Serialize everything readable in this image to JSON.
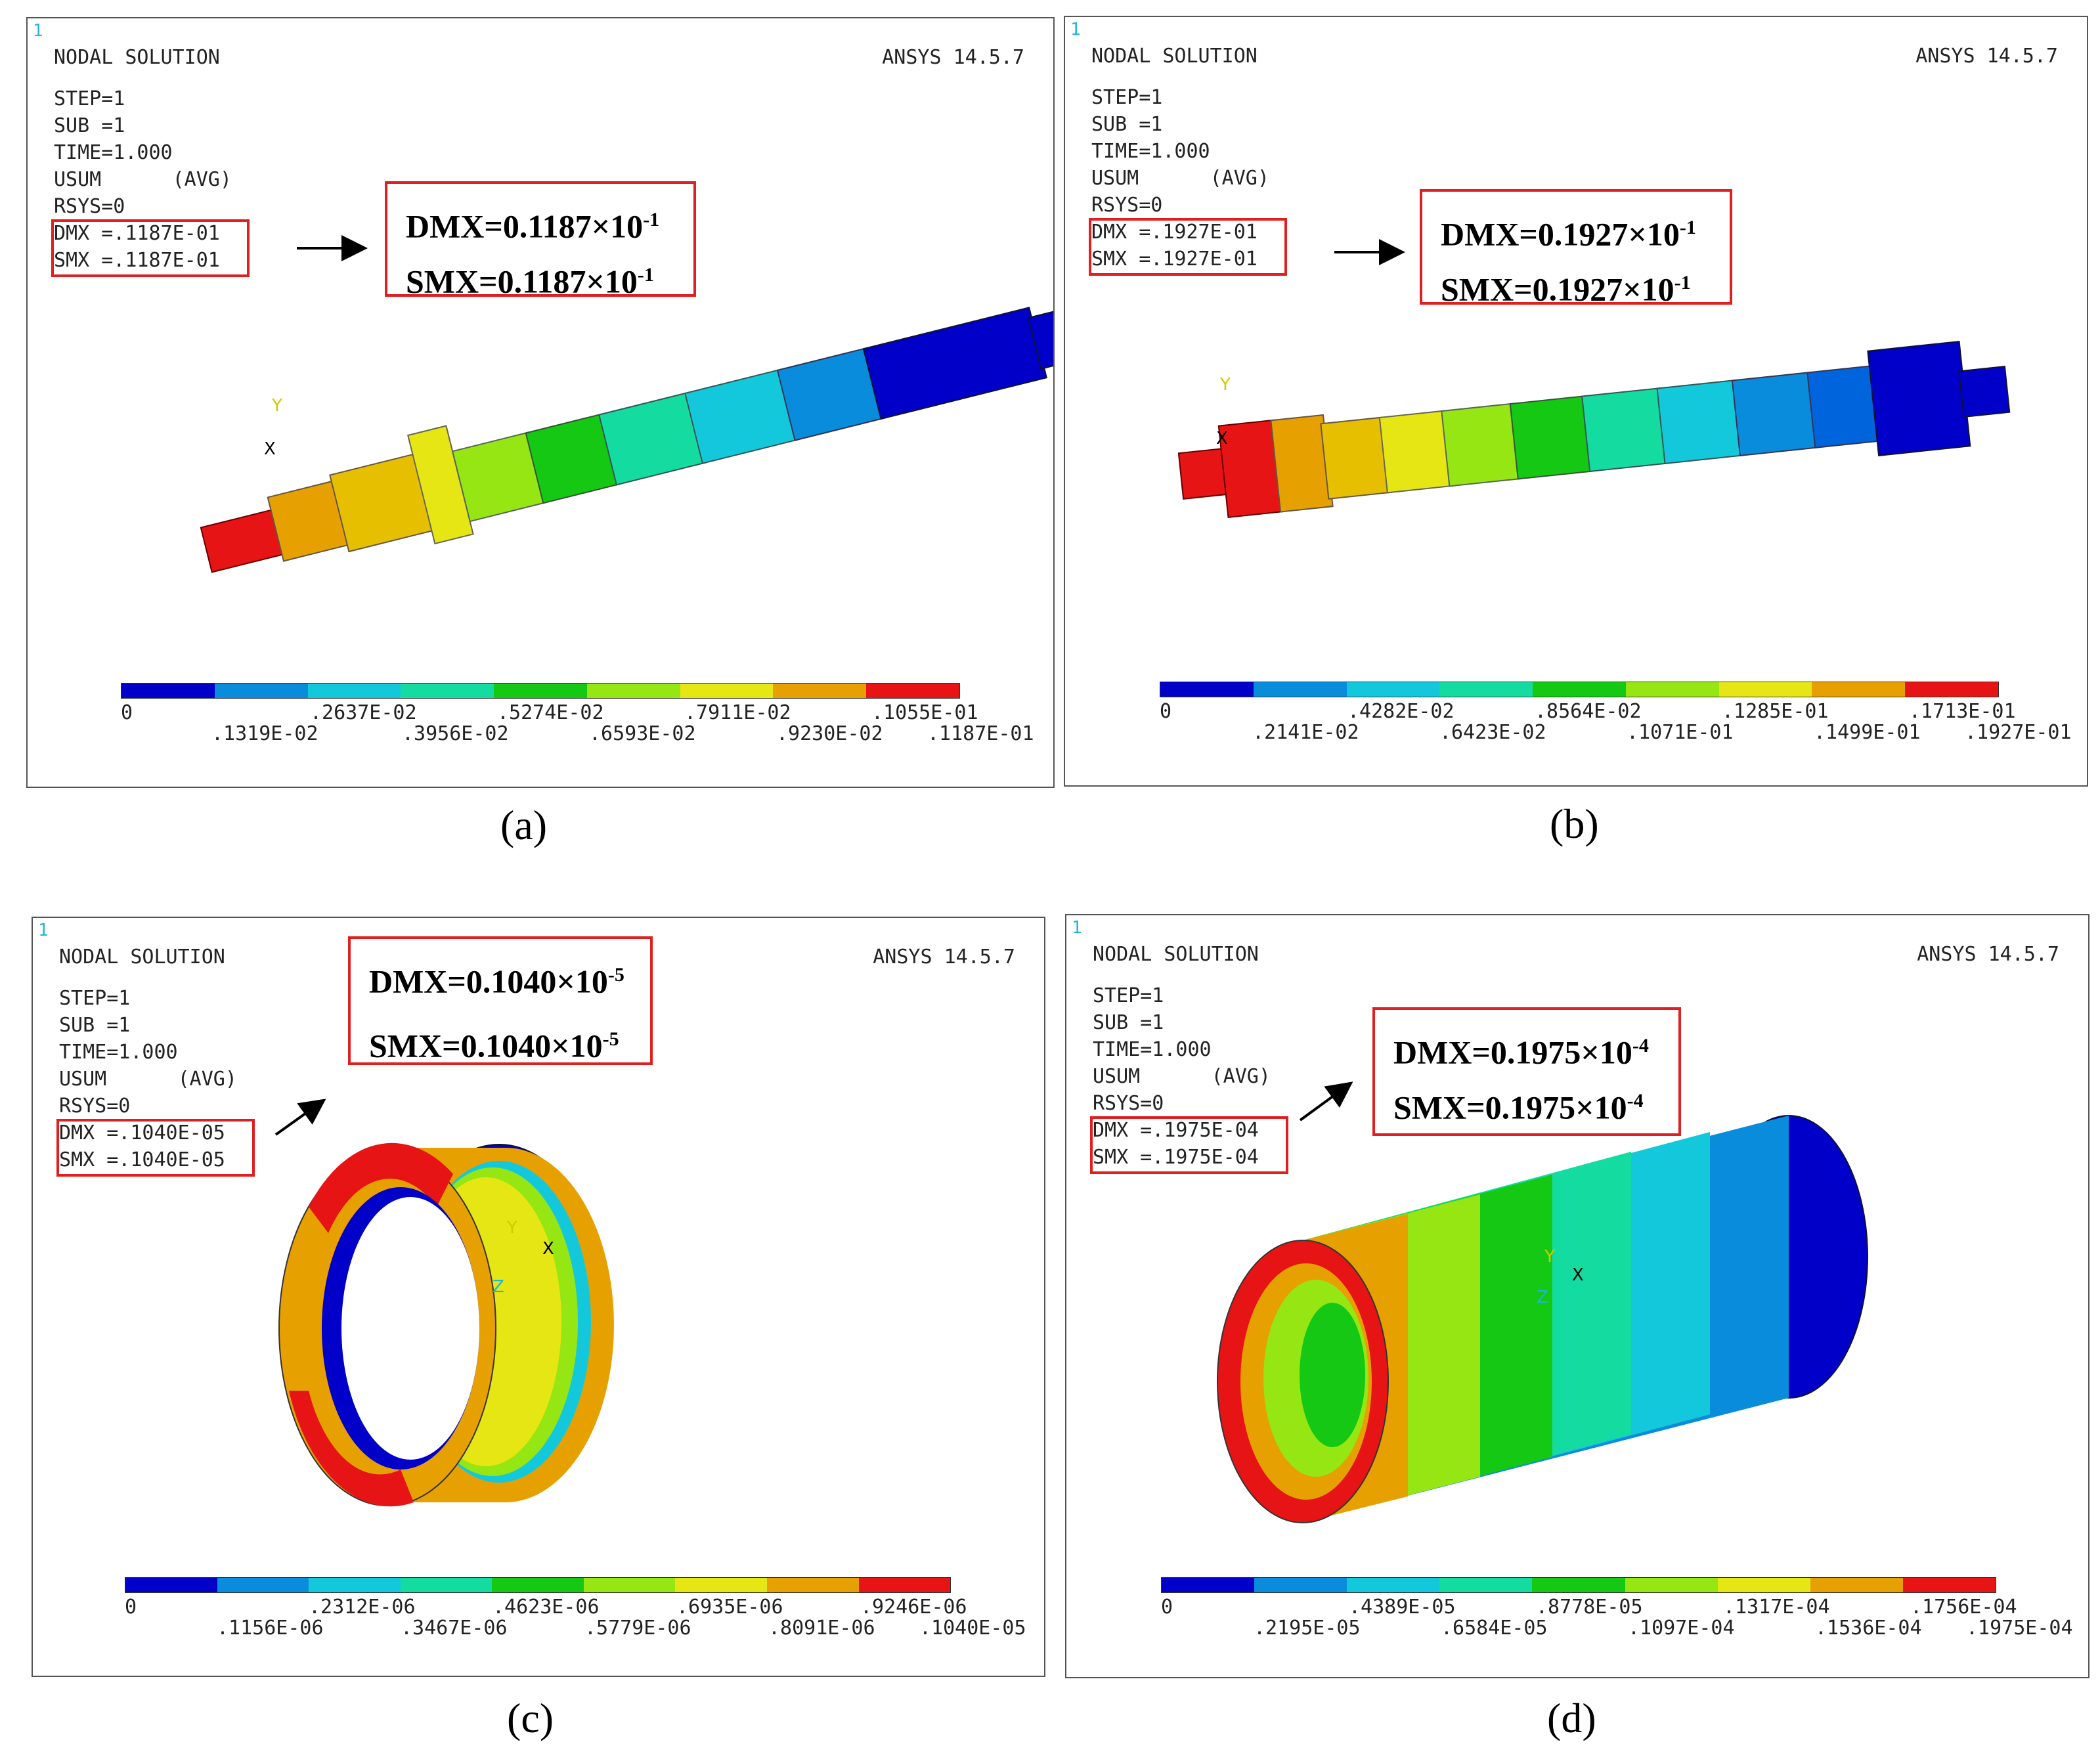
{
  "colors": [
    "#0000c8",
    "#0a8cdc",
    "#14c8dc",
    "#14dca0",
    "#14c814",
    "#96e614",
    "#e6e614",
    "#e6a000",
    "#e61414"
  ],
  "panels": [
    {
      "label": "(a)",
      "number": "1",
      "title": "NODAL SOLUTION",
      "version": "ANSYS 14.5.7",
      "info": [
        "STEP=1",
        "SUB =1",
        "TIME=1.000",
        "USUM      (AVG)",
        "RSYS=0"
      ],
      "dmx": "DMX =.1187E-01",
      "smx": "SMX =.1187E-01",
      "dmx_big": "DMX=0.1187×10",
      "smx_big": "SMX=0.1187×10",
      "exp": "-1",
      "ticks_top": [
        "0",
        ".2637E-02",
        ".5274E-02",
        ".7911E-02",
        ".1055E-01"
      ],
      "ticks_bottom": [
        ".1319E-02",
        ".3956E-02",
        ".6593E-02",
        ".9230E-02",
        ".1187E-01"
      ],
      "triad": [
        "Y",
        "X"
      ]
    },
    {
      "label": "(b)",
      "number": "1",
      "title": "NODAL SOLUTION",
      "version": "ANSYS 14.5.7",
      "info": [
        "STEP=1",
        "SUB =1",
        "TIME=1.000",
        "USUM      (AVG)",
        "RSYS=0"
      ],
      "dmx": "DMX =.1927E-01",
      "smx": "SMX =.1927E-01",
      "dmx_big": "DMX=0.1927×10",
      "smx_big": "SMX=0.1927×10",
      "exp": "-1",
      "ticks_top": [
        "0",
        ".4282E-02",
        ".8564E-02",
        ".1285E-01",
        ".1713E-01"
      ],
      "ticks_bottom": [
        ".2141E-02",
        ".6423E-02",
        ".1071E-01",
        ".1499E-01",
        ".1927E-01"
      ],
      "triad": [
        "Y",
        "X"
      ]
    },
    {
      "label": "(c)",
      "number": "1",
      "title": "NODAL SOLUTION",
      "version": "ANSYS 14.5.7",
      "info": [
        "STEP=1",
        "SUB =1",
        "TIME=1.000",
        "USUM      (AVG)",
        "RSYS=0"
      ],
      "dmx": "DMX =.1040E-05",
      "smx": "SMX =.1040E-05",
      "dmx_big": "DMX=0.1040×10",
      "smx_big": "SMX=0.1040×10",
      "exp": "-5",
      "ticks_top": [
        "0",
        ".2312E-06",
        ".4623E-06",
        ".6935E-06",
        ".9246E-06"
      ],
      "ticks_bottom": [
        ".1156E-06",
        ".3467E-06",
        ".5779E-06",
        ".8091E-06",
        ".1040E-05"
      ],
      "triad": [
        "Y",
        "X",
        "Z"
      ]
    },
    {
      "label": "(d)",
      "number": "1",
      "title": "NODAL SOLUTION",
      "version": "ANSYS 14.5.7",
      "info": [
        "STEP=1",
        "SUB =1",
        "TIME=1.000",
        "USUM      (AVG)",
        "RSYS=0"
      ],
      "dmx": "DMX =.1975E-04",
      "smx": "SMX =.1975E-04",
      "dmx_big": "DMX=0.1975×10",
      "smx_big": "SMX=0.1975×10",
      "exp": "-4",
      "ticks_top": [
        "0",
        ".4389E-05",
        ".8778E-05",
        ".1317E-04",
        ".1756E-04"
      ],
      "ticks_bottom": [
        ".2195E-05",
        ".6584E-05",
        ".1097E-04",
        ".1536E-04",
        ".1975E-04"
      ],
      "triad": [
        "Y",
        "X",
        "Z"
      ]
    }
  ]
}
